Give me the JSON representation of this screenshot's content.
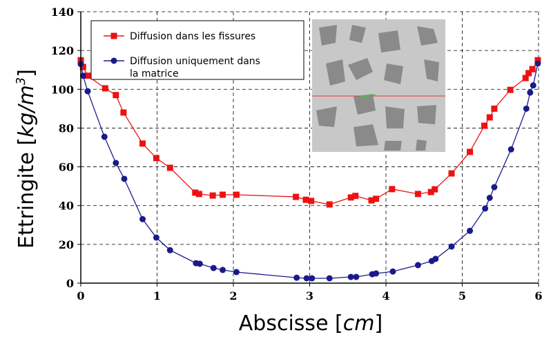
{
  "chart_data": {
    "type": "line",
    "xlabel": [
      "Abscisse [",
      "cm",
      "]"
    ],
    "ylabel": [
      "Ettringite [",
      "kg/m",
      "3",
      "]"
    ],
    "xlim": [
      0,
      6
    ],
    "xticks": [
      0,
      1,
      2,
      3,
      4,
      5,
      6
    ],
    "ylim": [
      0,
      140
    ],
    "yticks": [
      0,
      20,
      40,
      60,
      80,
      100,
      120,
      140
    ],
    "grid": true,
    "legend": "upper left",
    "series": [
      {
        "name": "Diffusion dans les fissures",
        "color": "#ee1111",
        "marker": "square",
        "x": [
          0,
          0.03,
          0.09,
          0.32,
          0.46,
          0.56,
          0.81,
          0.99,
          1.17,
          1.5,
          1.55,
          1.73,
          1.86,
          2.04,
          2.82,
          2.95,
          3.02,
          3.26,
          3.54,
          3.6,
          3.81,
          3.87,
          4.08,
          4.42,
          4.59,
          4.64,
          4.86,
          5.1,
          5.29,
          5.36,
          5.42,
          5.63,
          5.83,
          5.87,
          5.92,
          5.99
        ],
        "values": [
          115,
          111.5,
          107,
          100.5,
          97,
          88,
          72,
          64.5,
          59.5,
          46.7,
          46,
          45.2,
          45.6,
          45.6,
          44.5,
          43,
          42.4,
          40.6,
          44.2,
          45,
          42.7,
          43.5,
          48.5,
          46,
          47,
          48.4,
          56.6,
          67.7,
          81.2,
          85.5,
          90,
          99.7,
          105.8,
          108.3,
          110.4,
          115
        ]
      },
      {
        "name": "Diffusion uniquement dans\nla matrice",
        "color": "#1a1a8c",
        "marker": "circle",
        "x": [
          0,
          0.03,
          0.09,
          0.31,
          0.46,
          0.57,
          0.81,
          0.99,
          1.17,
          1.51,
          1.56,
          1.74,
          1.86,
          2.04,
          2.83,
          2.96,
          3.03,
          3.26,
          3.54,
          3.61,
          3.82,
          3.87,
          4.09,
          4.42,
          4.6,
          4.65,
          4.86,
          5.1,
          5.3,
          5.36,
          5.42,
          5.64,
          5.84,
          5.89,
          5.93,
          5.99
        ],
        "values": [
          113,
          107,
          99,
          75.5,
          62,
          53.8,
          33,
          23.5,
          17,
          10.3,
          10,
          7.8,
          6.8,
          5.7,
          2.8,
          2.5,
          2.5,
          2.5,
          3.2,
          3.2,
          4.6,
          5,
          6,
          9.3,
          11.4,
          12.5,
          18.9,
          27,
          38.5,
          44,
          49.5,
          69,
          90,
          98.3,
          102,
          113.3
        ]
      }
    ]
  }
}
